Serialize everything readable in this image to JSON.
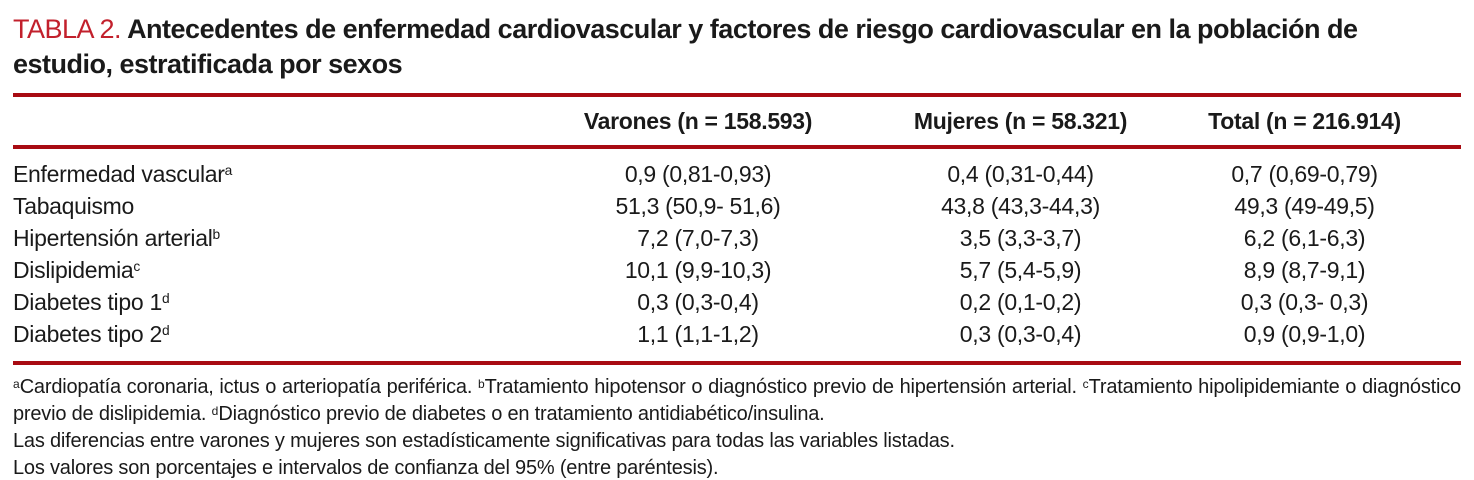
{
  "title": {
    "kicker": "TABLA 2.",
    "text": "Antecedentes de enfermedad cardiovascular y factores de riesgo cardiovascular en la población de estudio, estratificada por sexos"
  },
  "table": {
    "columns": [
      "Varones (n = 158.593)",
      "Mujeres (n = 58.321)",
      "Total (n = 216.914)"
    ],
    "rows": [
      {
        "label": "Enfermedad vascular",
        "sup": "a",
        "values": [
          "0,9 (0,81-0,93)",
          "0,4 (0,31-0,44)",
          "0,7 (0,69-0,79)"
        ]
      },
      {
        "label": "Tabaquismo",
        "sup": "",
        "values": [
          "51,3 (50,9- 51,6)",
          "43,8 (43,3-44,3)",
          "49,3 (49-49,5)"
        ]
      },
      {
        "label": "Hipertensión arterial",
        "sup": "b",
        "values": [
          "7,2 (7,0-7,3)",
          "3,5 (3,3-3,7)",
          "6,2 (6,1-6,3)"
        ]
      },
      {
        "label": "Dislipidemia",
        "sup": "c",
        "values": [
          "10,1 (9,9-10,3)",
          "5,7 (5,4-5,9)",
          "8,9 (8,7-9,1)"
        ]
      },
      {
        "label": "Diabetes tipo 1",
        "sup": "d",
        "values": [
          "0,3 (0,3-0,4)",
          "0,2 (0,1-0,2)",
          "0,3 (0,3- 0,3)"
        ]
      },
      {
        "label": "Diabetes tipo 2",
        "sup": "d",
        "values": [
          "1,1 (1,1-1,2)",
          "0,3 (0,3-0,4)",
          "0,9 (0,9-1,0)"
        ]
      }
    ]
  },
  "footnotes": {
    "definitions": [
      {
        "sup": "a",
        "text": "Cardiopatía coronaria, ictus o arteriopatía periférica. "
      },
      {
        "sup": "b",
        "text": "Tratamiento hipotensor o diagnóstico previo de hipertensión arterial. "
      },
      {
        "sup": "c",
        "text": "Tratamiento hipolipidemiante o diag­nóstico previo de dislipidemia. "
      },
      {
        "sup": "d",
        "text": "Diagnóstico previo de diabetes o en tratamiento antidiabético/insulina."
      }
    ],
    "notes": [
      "Las diferencias entre varones y mujeres son estadísticamente significativas para todas las variables listadas.",
      "Los valores son porcentajes e intervalos de confianza del 95% (entre paréntesis)."
    ]
  },
  "colors": {
    "accent_red": "#a80b12",
    "kicker_red": "#c2202c"
  }
}
